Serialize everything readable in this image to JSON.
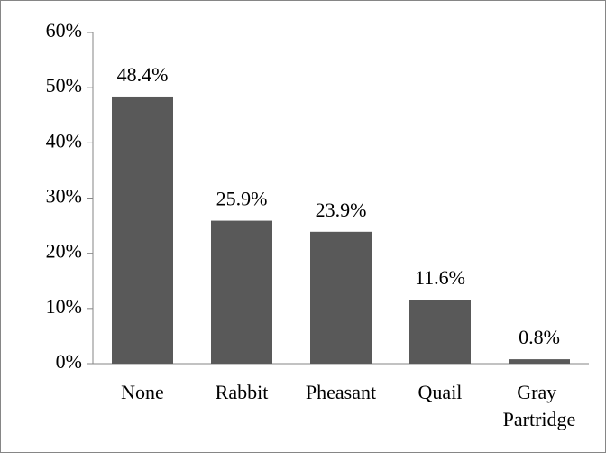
{
  "chart_data": {
    "type": "bar",
    "categories": [
      "None",
      "Rabbit",
      "Pheasant",
      "Quail",
      "Gray Partridge"
    ],
    "values": [
      48.4,
      25.9,
      23.9,
      11.6,
      0.8
    ],
    "value_labels": [
      "48.4%",
      "25.9%",
      "23.9%",
      "11.6%",
      "0.8%"
    ],
    "color": "#595959",
    "ylim": [
      0,
      60
    ],
    "yticks": [
      {
        "value": 0,
        "label": "0%"
      },
      {
        "value": 10,
        "label": "10%"
      },
      {
        "value": 20,
        "label": "20%"
      },
      {
        "value": 30,
        "label": "30%"
      },
      {
        "value": 40,
        "label": "40%"
      },
      {
        "value": 50,
        "label": "50%"
      },
      {
        "value": 60,
        "label": "60%"
      }
    ],
    "grid": false
  }
}
